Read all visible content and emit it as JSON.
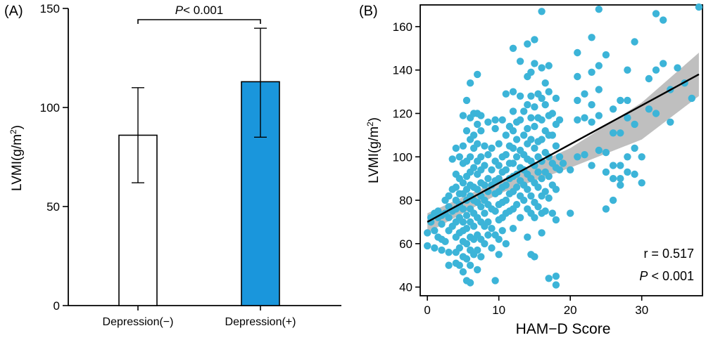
{
  "colors": {
    "bar_filled": "#1a96dc",
    "bar_empty": "#ffffff",
    "scatter_point": "#3cb4d8",
    "regression_line": "#000000",
    "confidence_band": "#b4b4b4"
  },
  "panel_a": {
    "panel_label": "(A)",
    "significance_label_italic": "P",
    "significance_label_rest": "< 0.001"
  },
  "panel_b": {
    "panel_label": "(B)",
    "r_label": "r = 0.517",
    "p_label_italic": "P",
    "p_label_rest": " < 0.001"
  },
  "chart_data": [
    {
      "type": "bar",
      "title": "",
      "xlabel": "",
      "ylabel": "LVMI(g/m²)",
      "ylabel_main": "LVMI(g/m",
      "ylabel_sup": "2",
      "ylabel_end": ")",
      "categories": [
        "Depression(−)",
        "Depression(+)"
      ],
      "values": [
        86,
        113
      ],
      "error_low": [
        62,
        85
      ],
      "error_high": [
        110,
        140
      ],
      "fill": [
        "#ffffff",
        "#1a96dc"
      ],
      "ylim": [
        0,
        150
      ],
      "yticks": [
        0,
        50,
        100,
        150
      ],
      "annotation": "P< 0.001",
      "grid": false,
      "legend": "none"
    },
    {
      "type": "scatter",
      "title": "",
      "xlabel": "HAM−D Score",
      "ylabel": "LVMI(g/m²)",
      "ylabel_main": "LVMI(g/m",
      "ylabel_sup": "2",
      "ylabel_end": ")",
      "xlim": [
        -1,
        38.5
      ],
      "ylim": [
        36,
        170
      ],
      "xticks": [
        0,
        10,
        20,
        30
      ],
      "yticks": [
        40,
        60,
        80,
        100,
        120,
        140,
        160
      ],
      "regression": {
        "x": [
          0,
          38
        ],
        "y": [
          70,
          138
        ]
      },
      "confidence_band": {
        "x": [
          0,
          10,
          20,
          30,
          38
        ],
        "lower": [
          65,
          83,
          95,
          108,
          128
        ],
        "upper": [
          74,
          89,
          104,
          125,
          148
        ]
      },
      "annotations": [
        "r = 0.517",
        "P < 0.001"
      ],
      "grid": false,
      "legend": "none",
      "points": [
        [
          0,
          65
        ],
        [
          0,
          59
        ],
        [
          0.5,
          72
        ],
        [
          0.5,
          70
        ],
        [
          1,
          74
        ],
        [
          1,
          66
        ],
        [
          1,
          58
        ],
        [
          1.5,
          75
        ],
        [
          1.5,
          72
        ],
        [
          1.5,
          63
        ],
        [
          2,
          73
        ],
        [
          2,
          69
        ],
        [
          2,
          62
        ],
        [
          2,
          57
        ],
        [
          2.5,
          80
        ],
        [
          2.5,
          74
        ],
        [
          2.5,
          61
        ],
        [
          3,
          82
        ],
        [
          3,
          77
        ],
        [
          3,
          72
        ],
        [
          3,
          66
        ],
        [
          3,
          56
        ],
        [
          3,
          50
        ],
        [
          3.5,
          99
        ],
        [
          3.5,
          85
        ],
        [
          3.5,
          75
        ],
        [
          3.5,
          68
        ],
        [
          4,
          104
        ],
        [
          4,
          92
        ],
        [
          4,
          86
        ],
        [
          4,
          80
        ],
        [
          4,
          76
        ],
        [
          4,
          70
        ],
        [
          4,
          63
        ],
        [
          4,
          56
        ],
        [
          4,
          51
        ],
        [
          4.5,
          100
        ],
        [
          4.5,
          90
        ],
        [
          4.5,
          83
        ],
        [
          4.5,
          78
        ],
        [
          4.5,
          72
        ],
        [
          4.5,
          65
        ],
        [
          4.5,
          58
        ],
        [
          4.5,
          50
        ],
        [
          5,
          119
        ],
        [
          5,
          105
        ],
        [
          5,
          97
        ],
        [
          5,
          88
        ],
        [
          5,
          83
        ],
        [
          5,
          76
        ],
        [
          5,
          70
        ],
        [
          5,
          66
        ],
        [
          5,
          61
        ],
        [
          5,
          54
        ],
        [
          5,
          47
        ],
        [
          5.5,
          126
        ],
        [
          5.5,
          112
        ],
        [
          5.5,
          98
        ],
        [
          5.5,
          91
        ],
        [
          5.5,
          85
        ],
        [
          5.5,
          80
        ],
        [
          5.5,
          73
        ],
        [
          5.5,
          67
        ],
        [
          5.5,
          60
        ],
        [
          5.5,
          53
        ],
        [
          5.5,
          43
        ],
        [
          6,
          134
        ],
        [
          6,
          118
        ],
        [
          6,
          108
        ],
        [
          6,
          100
        ],
        [
          6,
          93
        ],
        [
          6,
          87
        ],
        [
          6,
          82
        ],
        [
          6,
          76
        ],
        [
          6,
          70
        ],
        [
          6,
          63
        ],
        [
          6,
          57
        ],
        [
          6,
          50
        ],
        [
          6,
          42
        ],
        [
          6.5,
          120
        ],
        [
          6.5,
          110
        ],
        [
          6.5,
          104
        ],
        [
          6.5,
          95
        ],
        [
          6.5,
          86
        ],
        [
          6.5,
          80
        ],
        [
          6.5,
          74
        ],
        [
          6.5,
          68
        ],
        [
          6.5,
          62
        ],
        [
          6.5,
          55
        ],
        [
          7,
          138
        ],
        [
          7,
          120
        ],
        [
          7,
          115
        ],
        [
          7,
          106
        ],
        [
          7,
          98
        ],
        [
          7,
          92
        ],
        [
          7,
          85
        ],
        [
          7,
          79
        ],
        [
          7,
          72
        ],
        [
          7,
          64
        ],
        [
          7,
          57
        ],
        [
          7,
          48
        ],
        [
          7.5,
          119
        ],
        [
          7.5,
          112
        ],
        [
          7.5,
          100
        ],
        [
          7.5,
          94
        ],
        [
          7.5,
          88
        ],
        [
          7.5,
          82
        ],
        [
          7.5,
          77
        ],
        [
          7.5,
          70
        ],
        [
          7.5,
          62
        ],
        [
          7.5,
          54
        ],
        [
          8,
          105
        ],
        [
          8,
          96
        ],
        [
          8,
          87
        ],
        [
          8,
          80
        ],
        [
          8,
          74
        ],
        [
          8,
          68
        ],
        [
          8,
          60
        ],
        [
          8.5,
          116
        ],
        [
          8.5,
          101
        ],
        [
          8.5,
          90
        ],
        [
          8.5,
          84
        ],
        [
          8.5,
          78
        ],
        [
          8.5,
          70
        ],
        [
          8.5,
          64
        ],
        [
          9,
          104
        ],
        [
          9,
          94
        ],
        [
          9,
          87
        ],
        [
          9,
          76
        ],
        [
          9,
          67
        ],
        [
          9,
          58
        ],
        [
          9.5,
          117
        ],
        [
          9.5,
          113
        ],
        [
          9.5,
          98
        ],
        [
          9.5,
          89
        ],
        [
          9.5,
          83
        ],
        [
          9.5,
          75
        ],
        [
          9.5,
          64
        ],
        [
          9.5,
          43
        ],
        [
          10,
          106
        ],
        [
          10,
          96
        ],
        [
          10,
          90
        ],
        [
          10,
          84
        ],
        [
          10,
          78
        ],
        [
          10,
          71
        ],
        [
          10,
          62
        ],
        [
          10,
          55
        ],
        [
          10.5,
          117
        ],
        [
          10.5,
          100
        ],
        [
          10.5,
          93
        ],
        [
          10.5,
          86
        ],
        [
          10.5,
          79
        ],
        [
          10.5,
          72
        ],
        [
          10.5,
          66
        ],
        [
          11,
          129
        ],
        [
          11,
          110
        ],
        [
          11,
          101
        ],
        [
          11,
          94
        ],
        [
          11,
          87
        ],
        [
          11,
          80
        ],
        [
          11,
          74
        ],
        [
          11,
          60
        ],
        [
          11.5,
          114
        ],
        [
          11.5,
          105
        ],
        [
          11.5,
          97
        ],
        [
          11.5,
          90
        ],
        [
          11.5,
          83
        ],
        [
          11.5,
          75
        ],
        [
          12,
          150
        ],
        [
          12,
          130
        ],
        [
          12,
          121
        ],
        [
          12,
          112
        ],
        [
          12,
          104
        ],
        [
          12,
          97
        ],
        [
          12,
          91
        ],
        [
          12,
          84
        ],
        [
          12,
          76
        ],
        [
          12,
          67
        ],
        [
          12.5,
          116
        ],
        [
          12.5,
          108
        ],
        [
          12.5,
          100
        ],
        [
          12.5,
          92
        ],
        [
          12.5,
          86
        ],
        [
          12.5,
          78
        ],
        [
          13,
          144
        ],
        [
          13,
          128
        ],
        [
          13,
          117
        ],
        [
          13,
          103
        ],
        [
          13,
          95
        ],
        [
          13,
          89
        ],
        [
          13,
          82
        ],
        [
          13,
          72
        ],
        [
          13.5,
          121
        ],
        [
          13.5,
          110
        ],
        [
          13.5,
          101
        ],
        [
          13.5,
          94
        ],
        [
          13.5,
          87
        ],
        [
          13.5,
          80
        ],
        [
          14,
          152
        ],
        [
          14,
          137
        ],
        [
          14,
          124
        ],
        [
          14,
          113
        ],
        [
          14,
          106
        ],
        [
          14,
          99
        ],
        [
          14,
          92
        ],
        [
          14,
          85
        ],
        [
          14,
          76
        ],
        [
          14,
          63
        ],
        [
          14.5,
          139
        ],
        [
          14.5,
          128
        ],
        [
          14.5,
          118
        ],
        [
          14.5,
          108
        ],
        [
          14.5,
          98
        ],
        [
          14.5,
          90
        ],
        [
          14.5,
          82
        ],
        [
          14.5,
          74
        ],
        [
          14.5,
          55
        ],
        [
          15,
          154
        ],
        [
          15,
          143
        ],
        [
          15,
          123
        ],
        [
          15,
          114
        ],
        [
          15,
          104
        ],
        [
          15,
          96
        ],
        [
          15,
          88
        ],
        [
          15,
          79
        ],
        [
          15,
          72
        ],
        [
          15,
          54
        ],
        [
          15.5,
          129
        ],
        [
          15.5,
          118
        ],
        [
          15.5,
          107
        ],
        [
          15.5,
          100
        ],
        [
          15.5,
          93
        ],
        [
          15.5,
          86
        ],
        [
          15.5,
          77
        ],
        [
          16,
          167
        ],
        [
          16,
          141
        ],
        [
          16,
          127
        ],
        [
          16,
          117
        ],
        [
          16,
          108
        ],
        [
          16,
          98
        ],
        [
          16,
          90
        ],
        [
          16,
          82
        ],
        [
          16,
          74
        ],
        [
          16,
          65
        ],
        [
          16.5,
          134
        ],
        [
          16.5,
          124
        ],
        [
          16.5,
          112
        ],
        [
          16.5,
          102
        ],
        [
          16.5,
          93
        ],
        [
          16.5,
          84
        ],
        [
          16.5,
          75
        ],
        [
          17,
          142
        ],
        [
          17,
          130
        ],
        [
          17,
          119
        ],
        [
          17,
          110
        ],
        [
          17,
          100
        ],
        [
          17,
          91
        ],
        [
          17,
          81
        ],
        [
          17,
          44
        ],
        [
          17.5,
          120
        ],
        [
          17.5,
          110
        ],
        [
          17.5,
          97
        ],
        [
          17.5,
          87
        ],
        [
          17.5,
          74
        ],
        [
          18,
          127
        ],
        [
          18,
          115
        ],
        [
          18,
          105
        ],
        [
          18,
          95
        ],
        [
          18,
          85
        ],
        [
          18,
          71
        ],
        [
          18,
          45
        ],
        [
          18,
          41
        ],
        [
          18.5,
          117
        ],
        [
          18.5,
          100
        ],
        [
          18.5,
          94
        ],
        [
          19,
          97
        ],
        [
          20,
          94
        ],
        [
          20,
          74
        ],
        [
          21,
          148
        ],
        [
          21,
          137
        ],
        [
          21,
          126
        ],
        [
          21,
          117
        ],
        [
          21,
          100
        ],
        [
          22,
          129
        ],
        [
          22,
          118
        ],
        [
          22,
          101
        ],
        [
          23,
          155
        ],
        [
          23,
          139
        ],
        [
          23,
          124
        ],
        [
          23,
          116
        ],
        [
          23,
          96
        ],
        [
          24,
          168
        ],
        [
          24,
          142
        ],
        [
          24,
          131
        ],
        [
          24,
          119
        ],
        [
          24,
          103
        ],
        [
          25,
          147
        ],
        [
          25,
          102
        ],
        [
          25,
          93
        ],
        [
          25,
          76
        ],
        [
          26,
          122
        ],
        [
          26,
          111
        ],
        [
          26,
          96
        ],
        [
          26,
          90
        ],
        [
          26,
          80
        ],
        [
          27,
          126
        ],
        [
          27,
          111
        ],
        [
          27,
          96
        ],
        [
          27,
          90
        ],
        [
          27,
          87
        ],
        [
          28,
          140
        ],
        [
          28,
          126
        ],
        [
          28,
          118
        ],
        [
          28,
          100
        ],
        [
          28,
          93
        ],
        [
          29,
          153
        ],
        [
          29,
          115
        ],
        [
          29,
          104
        ],
        [
          29,
          92
        ],
        [
          30,
          100
        ],
        [
          30,
          88
        ],
        [
          31,
          136
        ],
        [
          31,
          122
        ],
        [
          32,
          166
        ],
        [
          32,
          140
        ],
        [
          32,
          120
        ],
        [
          33,
          163
        ],
        [
          33,
          143
        ],
        [
          34,
          131
        ],
        [
          34,
          116
        ],
        [
          35,
          141
        ],
        [
          36,
          134
        ],
        [
          37,
          127
        ],
        [
          38,
          169
        ]
      ]
    }
  ]
}
